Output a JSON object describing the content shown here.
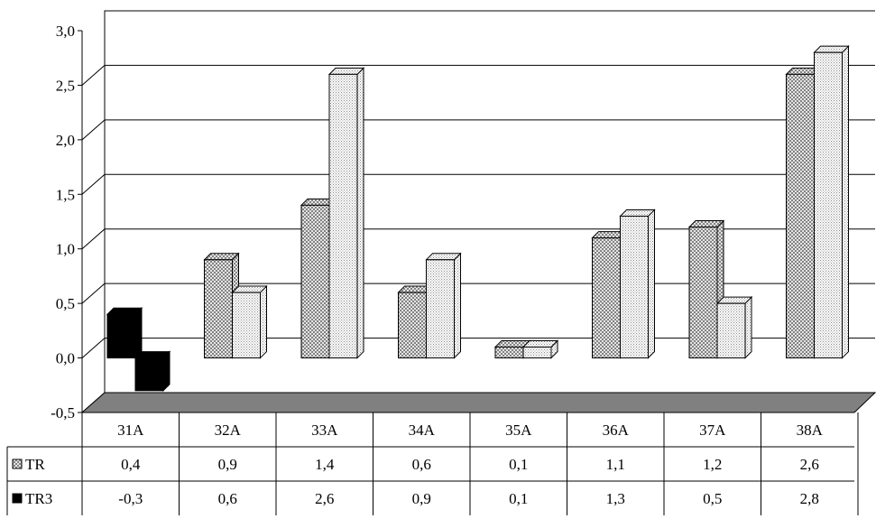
{
  "chart_data": {
    "type": "bar",
    "categories": [
      "31A",
      "32A",
      "33A",
      "34A",
      "35A",
      "36A",
      "37A",
      "38A"
    ],
    "series": [
      {
        "name": "TR",
        "values": [
          0.4,
          0.9,
          1.4,
          0.6,
          0.1,
          1.1,
          1.2,
          2.6
        ]
      },
      {
        "name": "TR3",
        "values": [
          -0.3,
          0.6,
          2.6,
          0.9,
          0.1,
          1.3,
          0.5,
          2.8
        ]
      }
    ],
    "table_values": [
      [
        "0,4",
        "0,9",
        "1,4",
        "0,6",
        "0,1",
        "1,1",
        "1,2",
        "2,6"
      ],
      [
        "-0,3",
        "0,6",
        "2,6",
        "0,9",
        "0,1",
        "1,3",
        "0,5",
        "2,8"
      ]
    ],
    "y_ticks": [
      "-0,5",
      "0,0",
      "0,5",
      "1,0",
      "1,5",
      "2,0",
      "2,5",
      "3,0"
    ],
    "ylim": [
      -0.5,
      3.0
    ],
    "y_step": 0.5,
    "grid": true,
    "style": "3d-clustered-column-with-data-table",
    "highlight_category": "31A",
    "colors": {
      "highlight": "#000000",
      "floor": "#808080",
      "grid": "#000000",
      "bar_edge": "#000000"
    }
  }
}
